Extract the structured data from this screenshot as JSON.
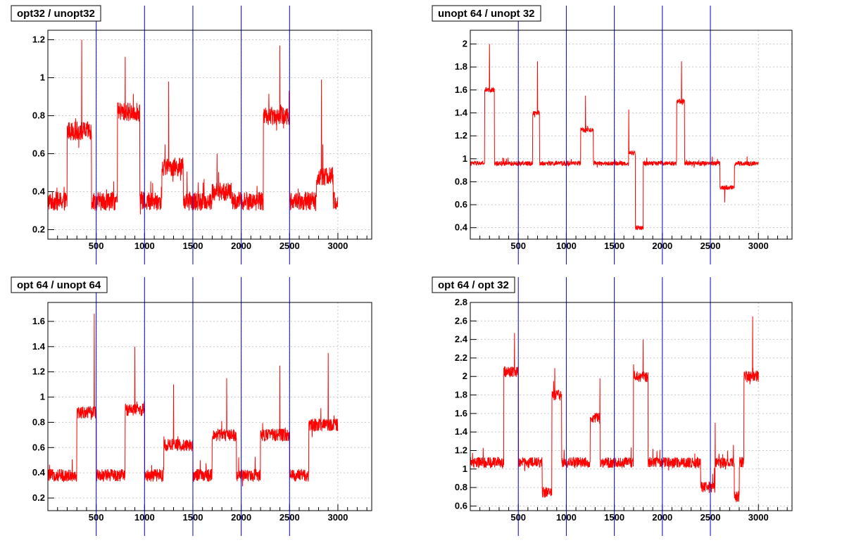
{
  "window": {
    "background": "#ffffff"
  },
  "colors": {
    "series": "#ff0000",
    "markers": "#0000cc",
    "grid": "#c8c8c8",
    "frame": "#000000"
  },
  "chart_data": [
    {
      "type": "line",
      "title": "opt32 / unopt32",
      "xlim": [
        0,
        3350
      ],
      "ylim": [
        0.15,
        1.25
      ],
      "xticks": [
        500,
        1000,
        1500,
        2000,
        2500,
        3000
      ],
      "xtick_labels": [
        "500",
        "1000",
        "1500",
        "2000",
        "2500",
        "3000"
      ],
      "yticks": [
        0.2,
        0.4,
        0.6,
        0.8,
        1.0,
        1.2
      ],
      "ytick_labels": [
        "0.2",
        "0.4",
        "0.6",
        "0.8",
        "1",
        "1.2"
      ],
      "vertical_markers": [
        500,
        1000,
        1500,
        2000,
        2500
      ],
      "grid": true,
      "series": [
        {
          "color": "#ff0000",
          "x": [
            0,
            3000
          ],
          "baseline": 0.35,
          "noise": 0.05,
          "segments": [
            [
              200,
              450,
              0.72
            ],
            [
              720,
              950,
              0.82
            ],
            [
              1180,
              1400,
              0.53
            ],
            [
              1700,
              1900,
              0.4
            ],
            [
              2230,
              2500,
              0.8
            ],
            [
              2780,
              2950,
              0.48
            ]
          ],
          "spikes": [
            [
              350,
              1.2
            ],
            [
              800,
              1.11
            ],
            [
              1250,
              0.98
            ],
            [
              1750,
              0.6
            ],
            [
              2400,
              1.17
            ],
            [
              2830,
              0.99
            ]
          ]
        }
      ]
    },
    {
      "type": "line",
      "title": "unopt 64 / unopt 32",
      "xlim": [
        0,
        3350
      ],
      "ylim": [
        0.3,
        2.12
      ],
      "xticks": [
        500,
        1000,
        1500,
        2000,
        2500,
        3000
      ],
      "xtick_labels": [
        "500",
        "1000",
        "1500",
        "2000",
        "2500",
        "3000"
      ],
      "yticks": [
        0.4,
        0.6,
        0.8,
        1.0,
        1.2,
        1.4,
        1.6,
        1.8,
        2.0
      ],
      "ytick_labels": [
        "0.4",
        "0.6",
        "0.8",
        "1",
        "1.2",
        "1.4",
        "1.6",
        "1.8",
        "2"
      ],
      "vertical_markers": [
        500,
        1000,
        1500,
        2000,
        2500
      ],
      "grid": true,
      "series": [
        {
          "color": "#ff0000",
          "x": [
            0,
            3000
          ],
          "baseline": 0.96,
          "noise": 0.02,
          "segments": [
            [
              150,
              250,
              1.6
            ],
            [
              650,
              720,
              1.4
            ],
            [
              1150,
              1280,
              1.25
            ],
            [
              1650,
              1720,
              1.05
            ],
            [
              1720,
              1800,
              0.4
            ],
            [
              2150,
              2230,
              1.5
            ],
            [
              2600,
              2750,
              0.75
            ]
          ],
          "spikes": [
            [
              200,
              2.0
            ],
            [
              700,
              1.85
            ],
            [
              1200,
              1.55
            ],
            [
              1650,
              1.43
            ],
            [
              2200,
              1.85
            ],
            [
              2650,
              0.62
            ]
          ]
        }
      ]
    },
    {
      "type": "line",
      "title": "opt 64 / unopt 64",
      "xlim": [
        0,
        3350
      ],
      "ylim": [
        0.1,
        1.75
      ],
      "xticks": [
        500,
        1000,
        1500,
        2000,
        2500,
        3000
      ],
      "xtick_labels": [
        "500",
        "1000",
        "1500",
        "2000",
        "2500",
        "3000"
      ],
      "yticks": [
        0.2,
        0.4,
        0.6,
        0.8,
        1.0,
        1.2,
        1.4,
        1.6
      ],
      "ytick_labels": [
        "0.2",
        "0.4",
        "0.6",
        "0.8",
        "1",
        "1.2",
        "1.4",
        "1.6"
      ],
      "vertical_markers": [
        500,
        1000,
        1500,
        2000,
        2500
      ],
      "grid": true,
      "series": [
        {
          "color": "#ff0000",
          "x": [
            0,
            3000
          ],
          "baseline": 0.38,
          "noise": 0.05,
          "segments": [
            [
              300,
              500,
              0.88
            ],
            [
              800,
              1000,
              0.9
            ],
            [
              1200,
              1500,
              0.62
            ],
            [
              1700,
              1950,
              0.7
            ],
            [
              2200,
              2500,
              0.7
            ],
            [
              2700,
              3000,
              0.78
            ]
          ],
          "spikes": [
            [
              480,
              1.66
            ],
            [
              900,
              1.4
            ],
            [
              1300,
              1.1
            ],
            [
              1850,
              1.15
            ],
            [
              2400,
              1.25
            ],
            [
              2900,
              1.35
            ]
          ]
        }
      ]
    },
    {
      "type": "line",
      "title": "opt 64 / opt 32",
      "xlim": [
        0,
        3350
      ],
      "ylim": [
        0.55,
        2.8
      ],
      "xticks": [
        500,
        1000,
        1500,
        2000,
        2500,
        3000
      ],
      "xtick_labels": [
        "500",
        "1000",
        "1500",
        "2000",
        "2500",
        "3000"
      ],
      "yticks": [
        0.6,
        0.8,
        1.0,
        1.2,
        1.4,
        1.6,
        1.8,
        2.0,
        2.2,
        2.4,
        2.6,
        2.8
      ],
      "ytick_labels": [
        "0.6",
        "0.8",
        "1",
        "1.2",
        "1.4",
        "1.6",
        "1.8",
        "2",
        "2.2",
        "2.4",
        "2.6",
        "2.8"
      ],
      "vertical_markers": [
        500,
        1000,
        1500,
        2000,
        2500
      ],
      "grid": true,
      "series": [
        {
          "color": "#ff0000",
          "x": [
            0,
            3000
          ],
          "baseline": 1.07,
          "noise": 0.06,
          "segments": [
            [
              350,
              500,
              2.05
            ],
            [
              750,
              850,
              0.75
            ],
            [
              850,
              950,
              1.8
            ],
            [
              1250,
              1350,
              1.55
            ],
            [
              1700,
              1850,
              2.0
            ],
            [
              2400,
              2550,
              0.8
            ],
            [
              2750,
              2800,
              0.7
            ],
            [
              2850,
              3000,
              2.0
            ]
          ],
          "spikes": [
            [
              460,
              2.47
            ],
            [
              880,
              2.09
            ],
            [
              1350,
              1.98
            ],
            [
              1800,
              2.4
            ],
            [
              2550,
              1.5
            ],
            [
              2940,
              2.65
            ]
          ]
        }
      ]
    }
  ]
}
